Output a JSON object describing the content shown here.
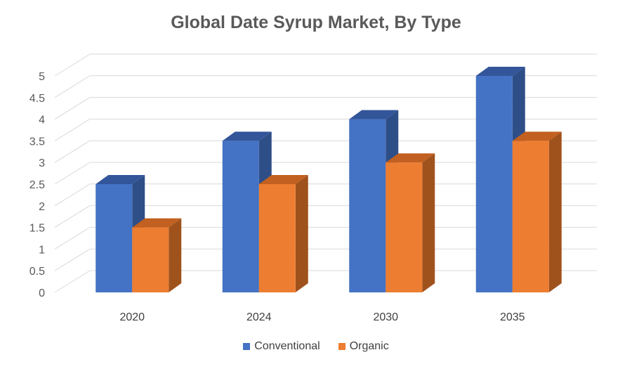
{
  "chart_data": {
    "type": "bar",
    "title": "Global Date Syrup Market, By Type",
    "xlabel": "",
    "ylabel": "",
    "categories": [
      "2020",
      "2024",
      "2030",
      "2035"
    ],
    "series": [
      {
        "name": "Conventional",
        "values": [
          2.5,
          3.5,
          4.0,
          5.0
        ],
        "color": "#4472c4",
        "side_color": "#2e4e88",
        "top_color": "#33559a"
      },
      {
        "name": "Organic",
        "values": [
          1.5,
          2.5,
          3.0,
          3.5
        ],
        "color": "#ed7d31",
        "side_color": "#a0521c",
        "top_color": "#c16020"
      }
    ],
    "ylim": [
      0,
      5
    ],
    "yticks": [
      "0",
      "0.5",
      "1",
      "1.5",
      "2",
      "2.5",
      "3",
      "3.5",
      "4",
      "4.5",
      "5"
    ],
    "grid": true,
    "legend_position": "bottom",
    "style": "3d-clustered-column"
  }
}
